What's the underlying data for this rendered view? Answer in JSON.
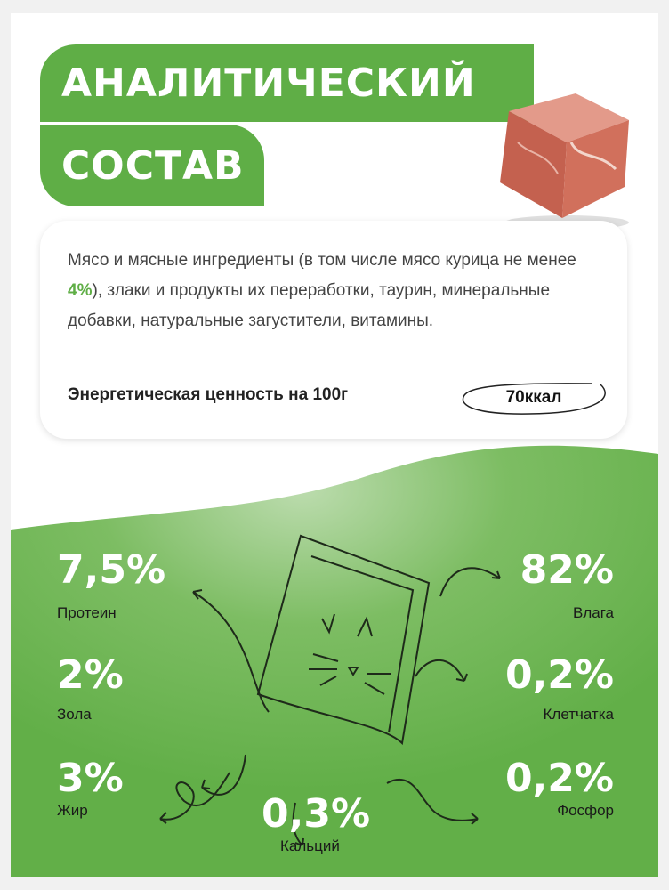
{
  "title": {
    "line1": "АНАЛИТИЧЕСКИЙ",
    "line2": "СОСТАВ"
  },
  "composition": {
    "text_before": "Мясо и мясные ингредиенты (в том числе мясо курица не менее ",
    "highlight": "4%",
    "text_after": "), злаки и продукты их переработки, таурин, минеральные добавки, натуральные загустители, витамины."
  },
  "energy": {
    "label": "Энергетическая ценность на 100г",
    "value": "70ккал"
  },
  "stats": {
    "protein": {
      "value": "7,5%",
      "label": "Протеин"
    },
    "ash": {
      "value": "2%",
      "label": "Зола"
    },
    "fat": {
      "value": "3%",
      "label": "Жир"
    },
    "calcium": {
      "value": "0,3%",
      "label": "Кальций"
    },
    "moisture": {
      "value": "82%",
      "label": "Влага"
    },
    "fiber": {
      "value": "0,2%",
      "label": "Клетчатка"
    },
    "phosphorus": {
      "value": "0,2%",
      "label": "Фосфор"
    }
  },
  "colors": {
    "accent": "#5fae46",
    "background_green": "#6ab352"
  }
}
